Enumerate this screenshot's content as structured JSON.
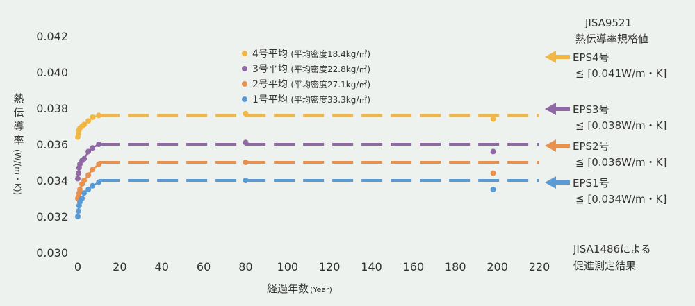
{
  "chart_data": {
    "type": "scatter",
    "xlabel": "経過年数",
    "xlabel_unit": "(Year)",
    "ylabel": "熱伝導率",
    "ylabel_unit": "(W/(m・K))",
    "xlim": [
      0,
      220
    ],
    "ylim": [
      0.03,
      0.042
    ],
    "x_ticks": [
      "0",
      "20",
      "40",
      "60",
      "80",
      "100",
      "120",
      "140",
      "160",
      "180",
      "200",
      "220"
    ],
    "y_ticks": [
      "0.030",
      "0.032",
      "0.034",
      "0.036",
      "0.038",
      "0.040",
      "0.042"
    ],
    "legend_position": "top-center",
    "series": [
      {
        "name": "4号平均 (平均密度18.4kg/㎥)",
        "color": "#f2b642",
        "level": 0.0376,
        "points": [
          [
            0,
            0.0364
          ],
          [
            0.3,
            0.0366
          ],
          [
            0.6,
            0.0368
          ],
          [
            1,
            0.0369
          ],
          [
            2,
            0.037
          ],
          [
            3,
            0.0371
          ],
          [
            5,
            0.0373
          ],
          [
            7,
            0.0375
          ],
          [
            10,
            0.0376
          ],
          [
            80,
            0.0377
          ],
          [
            198,
            0.0374
          ]
        ]
      },
      {
        "name": "3号平均 (平均密度22.8kg/㎥)",
        "color": "#8f68a5",
        "level": 0.036,
        "points": [
          [
            0,
            0.0341
          ],
          [
            0.3,
            0.0344
          ],
          [
            0.6,
            0.0347
          ],
          [
            1,
            0.0349
          ],
          [
            2,
            0.0351
          ],
          [
            3,
            0.0352
          ],
          [
            5,
            0.0356
          ],
          [
            7,
            0.0358
          ],
          [
            10,
            0.036
          ],
          [
            80,
            0.0361
          ],
          [
            198,
            0.0356
          ]
        ]
      },
      {
        "name": "2号平均 (平均密度27.1kg/㎥)",
        "color": "#e8914e",
        "level": 0.035,
        "points": [
          [
            0,
            0.033
          ],
          [
            0.3,
            0.0331
          ],
          [
            0.6,
            0.0333
          ],
          [
            1,
            0.0335
          ],
          [
            2,
            0.0338
          ],
          [
            3,
            0.034
          ],
          [
            5,
            0.0343
          ],
          [
            7,
            0.0346
          ],
          [
            10,
            0.0349
          ],
          [
            80,
            0.035
          ],
          [
            198,
            0.0344
          ]
        ]
      },
      {
        "name": "1号平均 (平均密度33.3kg/㎥)",
        "color": "#5b9bd5",
        "level": 0.034,
        "points": [
          [
            0,
            0.032
          ],
          [
            0.3,
            0.0323
          ],
          [
            0.6,
            0.0326
          ],
          [
            1,
            0.0328
          ],
          [
            2,
            0.033
          ],
          [
            3,
            0.0333
          ],
          [
            5,
            0.0335
          ],
          [
            7,
            0.0337
          ],
          [
            10,
            0.0339
          ],
          [
            80,
            0.034
          ],
          [
            198,
            0.0335
          ]
        ]
      }
    ],
    "annotations": {
      "standard_title_1": "JISA9521",
      "standard_title_2": "熱伝導率規格値",
      "bottom_note_1": "JISA1486による",
      "bottom_note_2": "促進測定結果",
      "limits": [
        {
          "grade": "EPS4号",
          "spec": "≦ [0.041W/m・K]",
          "value": 0.041,
          "color": "#f2b642"
        },
        {
          "grade": "EPS3号",
          "spec": "≦ [0.038W/m・K]",
          "value": 0.038,
          "color": "#8f68a5"
        },
        {
          "grade": "EPS2号",
          "spec": "≦ [0.036W/m・K]",
          "value": 0.036,
          "color": "#e8914e"
        },
        {
          "grade": "EPS1号",
          "spec": "≦ [0.034W/m・K]",
          "value": 0.034,
          "color": "#5b9bd5"
        }
      ]
    }
  }
}
